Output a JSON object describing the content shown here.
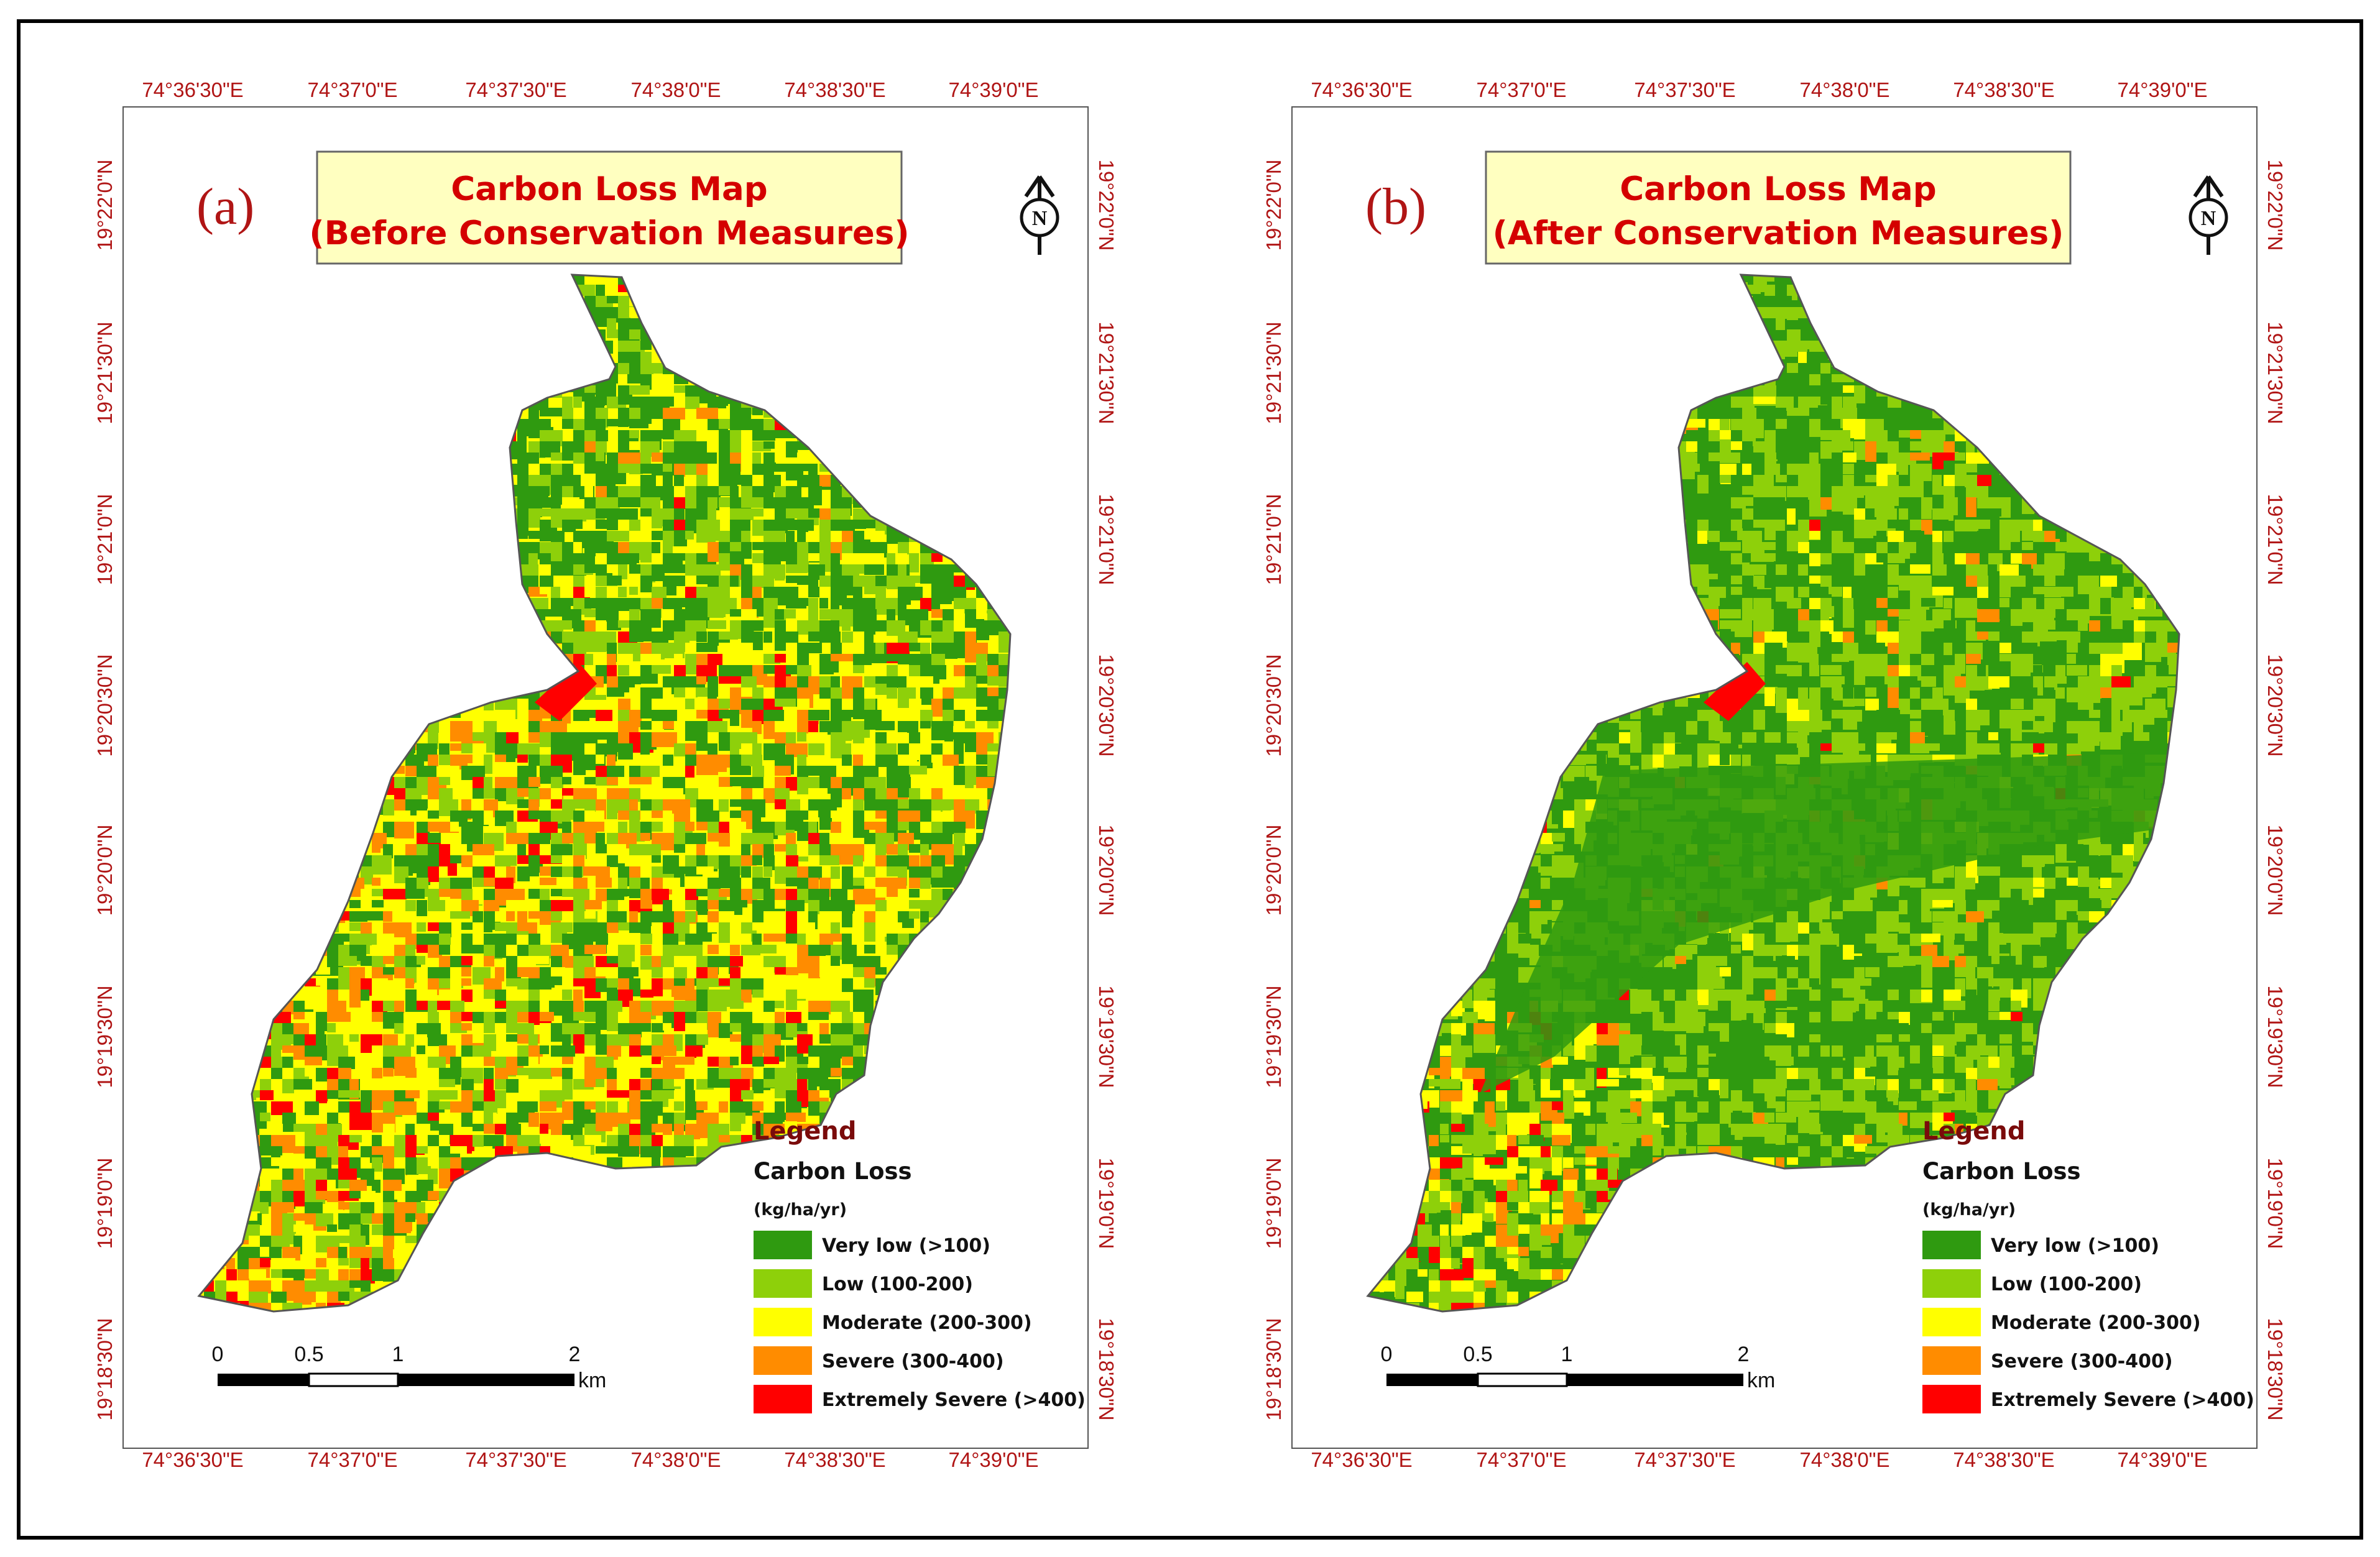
{
  "colors": {
    "very_low": "#2f9a10",
    "low": "#8ed00a",
    "moderate": "#ffff00",
    "severe": "#ff8c00",
    "extremely_severe": "#ff0000",
    "title_bg": "#ffffc0",
    "tick_text": "#b01515"
  },
  "axes": {
    "lon_ticks": [
      "74°36'30\"E",
      "74°37'0\"E",
      "74°37'30\"E",
      "74°38'0\"E",
      "74°38'30\"E",
      "74°39'0\"E"
    ],
    "lat_ticks": [
      "19°22'0\"N",
      "19°21'30\"N",
      "19°21'0\"N",
      "19°20'30\"N",
      "19°20'0\"N",
      "19°19'30\"N",
      "19°19'0\"N",
      "19°18'30\"N"
    ]
  },
  "panels": [
    {
      "id": "a",
      "label": "(a)",
      "title_line1": "Carbon Loss Map",
      "title_line2": "(Before Conservation Measures)",
      "dominant_class": "moderate"
    },
    {
      "id": "b",
      "label": "(b)",
      "title_line1": "Carbon Loss Map",
      "title_line2": "(After Conservation Measures)",
      "dominant_class": "very_low"
    }
  ],
  "north_arrow": "N",
  "legend": {
    "heading": "Legend",
    "subheading": "Carbon Loss",
    "unit": "(kg/ha/yr)",
    "items": [
      {
        "key": "very_low",
        "label": "Very low (>100)"
      },
      {
        "key": "low",
        "label": "Low (100-200)"
      },
      {
        "key": "moderate",
        "label": "Moderate (200-300)"
      },
      {
        "key": "severe",
        "label": "Severe (300-400)"
      },
      {
        "key": "extremely_severe",
        "label": "Extremely Severe (>400)"
      }
    ]
  },
  "scale_bar": {
    "labels": [
      "0",
      "0.5",
      "1",
      "2"
    ],
    "unit": "km"
  }
}
